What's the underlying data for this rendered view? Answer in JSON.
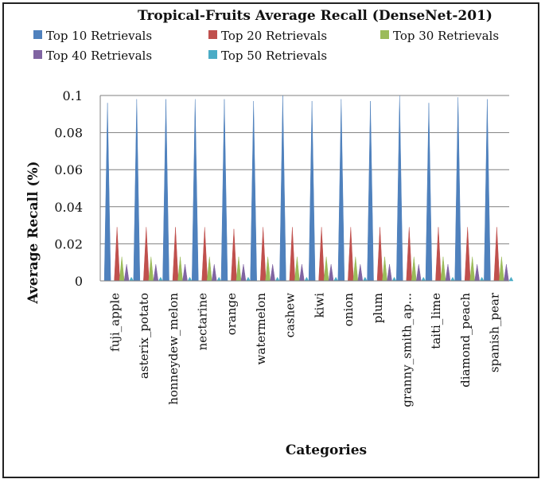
{
  "chart_data": {
    "type": "bar",
    "title": "Tropical-Fruits Average Recall (DenseNet-201)",
    "xlabel": "Categories",
    "ylabel": "Average Recall (%)",
    "ylim": [
      0,
      0.1
    ],
    "yticks": [
      "0",
      "0.02",
      "0.04",
      "0.06",
      "0.08",
      "0.1"
    ],
    "grid": true,
    "legend_position": "top",
    "categories": [
      "fuji_apple",
      "asterix_potato",
      "honneydew_melon",
      "nectarine",
      "orange",
      "watermelon",
      "cashew",
      "kiwi",
      "onion",
      "plum",
      "granny_smith_ap...",
      "taiti_lime",
      "diamond_peach",
      "spanish_pear"
    ],
    "series": [
      {
        "name": "Top 10 Retrievals",
        "color": "#4F81BD",
        "values": [
          0.096,
          0.098,
          0.098,
          0.098,
          0.098,
          0.097,
          0.1,
          0.097,
          0.098,
          0.097,
          0.1,
          0.096,
          0.099,
          0.098
        ]
      },
      {
        "name": "Top 20 Retrievals",
        "color": "#C0504D",
        "values": [
          0.029,
          0.029,
          0.029,
          0.029,
          0.028,
          0.029,
          0.029,
          0.029,
          0.029,
          0.029,
          0.029,
          0.029,
          0.029,
          0.029
        ]
      },
      {
        "name": "Top 30 Retrievals",
        "color": "#9BBB59",
        "values": [
          0.013,
          0.013,
          0.013,
          0.013,
          0.013,
          0.013,
          0.013,
          0.013,
          0.013,
          0.013,
          0.013,
          0.013,
          0.013,
          0.013
        ]
      },
      {
        "name": "Top 40 Retrievals",
        "color": "#8064A2",
        "values": [
          0.009,
          0.009,
          0.009,
          0.009,
          0.009,
          0.009,
          0.009,
          0.009,
          0.009,
          0.009,
          0.009,
          0.009,
          0.009,
          0.009
        ]
      },
      {
        "name": "Top 50 Retrievals",
        "color": "#4BACC6",
        "values": [
          0.002,
          0.002,
          0.002,
          0.002,
          0.002,
          0.002,
          0.002,
          0.002,
          0.002,
          0.002,
          0.002,
          0.002,
          0.002,
          0.002
        ]
      }
    ]
  }
}
